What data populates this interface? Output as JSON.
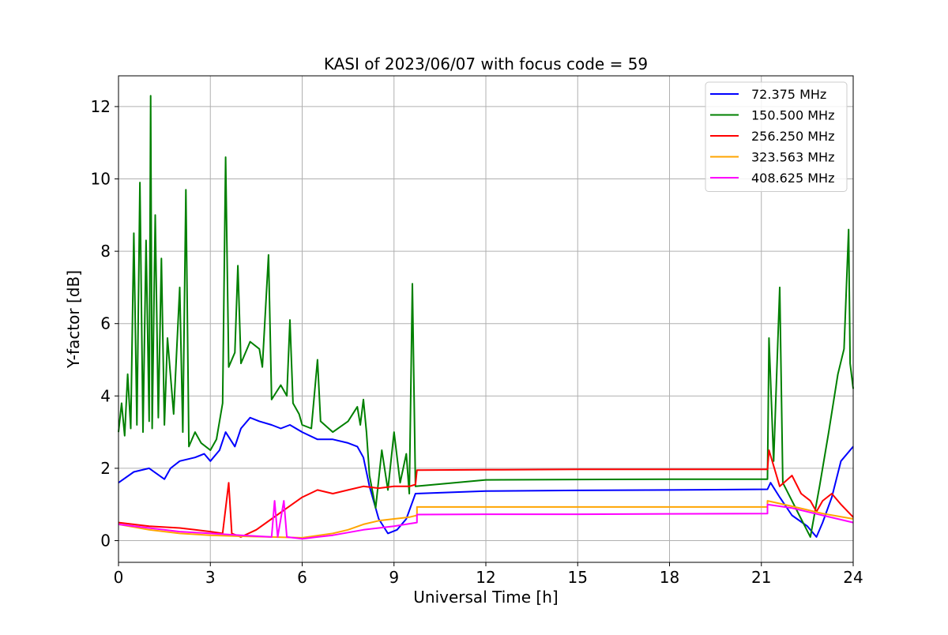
{
  "chart_data": {
    "type": "line",
    "title": "KASI of 2023/06/07 with focus code = 59",
    "xlabel": "Universal Time [h]",
    "ylabel": "Y-factor [dB]",
    "xlim": [
      0,
      24
    ],
    "ylim": [
      -0.6,
      12.85
    ],
    "xticks": [
      0,
      3,
      6,
      9,
      12,
      15,
      18,
      21,
      24
    ],
    "yticks": [
      0,
      2,
      4,
      6,
      8,
      10,
      12
    ],
    "grid": true,
    "legend_position": "top-right",
    "series": [
      {
        "name": " 72.375 MHz",
        "color": "#0000ff",
        "points": [
          [
            0,
            1.6
          ],
          [
            0.5,
            1.9
          ],
          [
            1,
            2.0
          ],
          [
            1.5,
            1.7
          ],
          [
            1.7,
            2.0
          ],
          [
            2,
            2.2
          ],
          [
            2.5,
            2.3
          ],
          [
            2.8,
            2.4
          ],
          [
            3,
            2.2
          ],
          [
            3.3,
            2.5
          ],
          [
            3.5,
            3.0
          ],
          [
            3.8,
            2.6
          ],
          [
            4,
            3.1
          ],
          [
            4.3,
            3.4
          ],
          [
            4.6,
            3.3
          ],
          [
            5,
            3.2
          ],
          [
            5.3,
            3.1
          ],
          [
            5.6,
            3.2
          ],
          [
            6,
            3.0
          ],
          [
            6.5,
            2.8
          ],
          [
            7,
            2.8
          ],
          [
            7.5,
            2.7
          ],
          [
            7.8,
            2.6
          ],
          [
            8,
            2.3
          ],
          [
            8.2,
            1.5
          ],
          [
            8.5,
            0.6
          ],
          [
            8.8,
            0.2
          ],
          [
            9.1,
            0.3
          ],
          [
            9.4,
            0.6
          ],
          [
            9.7,
            1.3
          ],
          [
            12,
            1.37
          ],
          [
            15,
            1.39
          ],
          [
            18,
            1.4
          ],
          [
            21.2,
            1.42
          ],
          [
            21.3,
            1.6
          ],
          [
            21.6,
            1.2
          ],
          [
            22,
            0.7
          ],
          [
            22.5,
            0.4
          ],
          [
            22.8,
            0.1
          ],
          [
            23,
            0.5
          ],
          [
            23.3,
            1.2
          ],
          [
            23.6,
            2.2
          ],
          [
            24,
            2.6
          ]
        ]
      },
      {
        "name": "150.500 MHz",
        "color": "#008000",
        "points": [
          [
            0,
            3.0
          ],
          [
            0.1,
            3.8
          ],
          [
            0.2,
            2.9
          ],
          [
            0.3,
            4.6
          ],
          [
            0.4,
            3.1
          ],
          [
            0.5,
            8.5
          ],
          [
            0.6,
            3.2
          ],
          [
            0.7,
            9.9
          ],
          [
            0.8,
            3.0
          ],
          [
            0.9,
            8.3
          ],
          [
            1.0,
            3.3
          ],
          [
            1.05,
            12.3
          ],
          [
            1.1,
            3.1
          ],
          [
            1.2,
            9.0
          ],
          [
            1.3,
            3.4
          ],
          [
            1.4,
            7.8
          ],
          [
            1.5,
            3.2
          ],
          [
            1.6,
            5.6
          ],
          [
            1.8,
            3.5
          ],
          [
            2.0,
            7.0
          ],
          [
            2.1,
            3.0
          ],
          [
            2.2,
            9.7
          ],
          [
            2.3,
            2.6
          ],
          [
            2.5,
            3.0
          ],
          [
            2.7,
            2.7
          ],
          [
            3.0,
            2.5
          ],
          [
            3.2,
            2.8
          ],
          [
            3.4,
            3.8
          ],
          [
            3.5,
            10.6
          ],
          [
            3.6,
            4.8
          ],
          [
            3.8,
            5.2
          ],
          [
            3.9,
            7.6
          ],
          [
            4.0,
            4.9
          ],
          [
            4.3,
            5.5
          ],
          [
            4.6,
            5.3
          ],
          [
            4.7,
            4.8
          ],
          [
            4.9,
            7.9
          ],
          [
            5.0,
            3.9
          ],
          [
            5.3,
            4.3
          ],
          [
            5.5,
            4.0
          ],
          [
            5.6,
            6.1
          ],
          [
            5.7,
            3.8
          ],
          [
            5.9,
            3.5
          ],
          [
            6.0,
            3.2
          ],
          [
            6.3,
            3.1
          ],
          [
            6.5,
            5.0
          ],
          [
            6.6,
            3.3
          ],
          [
            7.0,
            3.0
          ],
          [
            7.5,
            3.3
          ],
          [
            7.8,
            3.7
          ],
          [
            7.9,
            3.2
          ],
          [
            8.0,
            3.9
          ],
          [
            8.1,
            3.0
          ],
          [
            8.2,
            1.8
          ],
          [
            8.4,
            0.9
          ],
          [
            8.6,
            2.5
          ],
          [
            8.8,
            1.4
          ],
          [
            9.0,
            3.0
          ],
          [
            9.2,
            1.6
          ],
          [
            9.4,
            2.4
          ],
          [
            9.5,
            1.3
          ],
          [
            9.6,
            7.1
          ],
          [
            9.7,
            1.5
          ],
          [
            12,
            1.68
          ],
          [
            15,
            1.69
          ],
          [
            18,
            1.7
          ],
          [
            21.2,
            1.7
          ],
          [
            21.25,
            5.6
          ],
          [
            21.4,
            2.2
          ],
          [
            21.6,
            7.0
          ],
          [
            21.7,
            1.6
          ],
          [
            22,
            1.1
          ],
          [
            22.3,
            0.6
          ],
          [
            22.6,
            0.1
          ],
          [
            22.9,
            1.5
          ],
          [
            23.2,
            3.0
          ],
          [
            23.5,
            4.6
          ],
          [
            23.7,
            5.3
          ],
          [
            23.85,
            8.6
          ],
          [
            23.9,
            4.9
          ],
          [
            24,
            4.2
          ]
        ]
      },
      {
        "name": "256.250 MHz",
        "color": "#ff0000",
        "points": [
          [
            0,
            0.5
          ],
          [
            1,
            0.4
          ],
          [
            2,
            0.35
          ],
          [
            2.5,
            0.3
          ],
          [
            3,
            0.25
          ],
          [
            3.4,
            0.2
          ],
          [
            3.6,
            1.6
          ],
          [
            3.7,
            0.2
          ],
          [
            4,
            0.1
          ],
          [
            4.5,
            0.3
          ],
          [
            5,
            0.6
          ],
          [
            5.5,
            0.9
          ],
          [
            6,
            1.2
          ],
          [
            6.5,
            1.4
          ],
          [
            7,
            1.3
          ],
          [
            7.5,
            1.4
          ],
          [
            8,
            1.5
          ],
          [
            8.5,
            1.45
          ],
          [
            9,
            1.5
          ],
          [
            9.5,
            1.5
          ],
          [
            9.7,
            1.55
          ],
          [
            9.75,
            1.95
          ],
          [
            12,
            1.96
          ],
          [
            15,
            1.97
          ],
          [
            18,
            1.97
          ],
          [
            21.2,
            1.97
          ],
          [
            21.25,
            2.5
          ],
          [
            21.6,
            1.5
          ],
          [
            22,
            1.8
          ],
          [
            22.3,
            1.3
          ],
          [
            22.6,
            1.1
          ],
          [
            22.8,
            0.8
          ],
          [
            23.0,
            1.1
          ],
          [
            23.3,
            1.3
          ],
          [
            23.6,
            1.0
          ],
          [
            24,
            0.65
          ]
        ]
      },
      {
        "name": "323.563 MHz",
        "color": "#ffa500",
        "points": [
          [
            0,
            0.45
          ],
          [
            1,
            0.3
          ],
          [
            2,
            0.2
          ],
          [
            3,
            0.15
          ],
          [
            4,
            0.12
          ],
          [
            5,
            0.1
          ],
          [
            6,
            0.08
          ],
          [
            7,
            0.2
          ],
          [
            7.5,
            0.3
          ],
          [
            8,
            0.45
          ],
          [
            8.5,
            0.55
          ],
          [
            9,
            0.6
          ],
          [
            9.5,
            0.65
          ],
          [
            9.75,
            0.7
          ],
          [
            9.75,
            0.93
          ],
          [
            12,
            0.93
          ],
          [
            15,
            0.93
          ],
          [
            18,
            0.93
          ],
          [
            21.2,
            0.93
          ],
          [
            21.2,
            1.1
          ],
          [
            22,
            0.95
          ],
          [
            23,
            0.75
          ],
          [
            24,
            0.6
          ]
        ]
      },
      {
        "name": "408.625 MHz",
        "color": "#ff00ff",
        "points": [
          [
            0,
            0.45
          ],
          [
            1,
            0.35
          ],
          [
            2,
            0.25
          ],
          [
            3,
            0.2
          ],
          [
            4,
            0.15
          ],
          [
            5,
            0.1
          ],
          [
            5.1,
            1.1
          ],
          [
            5.2,
            0.1
          ],
          [
            5.4,
            1.1
          ],
          [
            5.5,
            0.1
          ],
          [
            6,
            0.05
          ],
          [
            6.5,
            0.1
          ],
          [
            7,
            0.15
          ],
          [
            8,
            0.3
          ],
          [
            9,
            0.4
          ],
          [
            9.75,
            0.5
          ],
          [
            9.75,
            0.72
          ],
          [
            12,
            0.73
          ],
          [
            15,
            0.73
          ],
          [
            18,
            0.74
          ],
          [
            21.2,
            0.75
          ],
          [
            21.2,
            1.0
          ],
          [
            22,
            0.9
          ],
          [
            23,
            0.7
          ],
          [
            24,
            0.5
          ]
        ]
      }
    ]
  }
}
